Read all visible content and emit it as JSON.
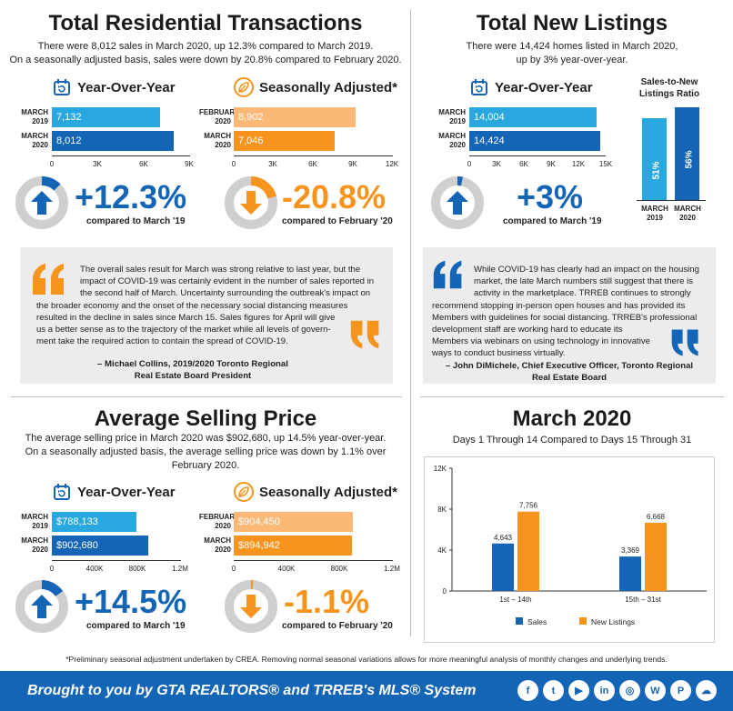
{
  "colors": {
    "light_blue": "#29a8e0",
    "dark_blue": "#1565b6",
    "light_orange": "#fbb877",
    "orange": "#f7941d",
    "grey": "#cfcfcf"
  },
  "trans": {
    "title": "Total Residential Transactions",
    "sub1": "There were 8,012 sales in March 2020, up 12.3% compared to March 2019.",
    "sub2": "On a seasonally adjusted basis, sales were down by 20.8% compared to February 2020.",
    "yoy": {
      "label": "Year-Over-Year",
      "r1l1": "MARCH",
      "r1l2": "2019",
      "r1v": "7,132",
      "r2l1": "MARCH",
      "r2l2": "2020",
      "r2v": "8,012",
      "ticks": [
        "0",
        "3K",
        "6K",
        "9K"
      ]
    },
    "sa": {
      "label": "Seasonally Adjusted*",
      "r1l1": "FEBRUARY",
      "r1l2": "2020",
      "r1v": "8,902",
      "r2l1": "MARCH",
      "r2l2": "2020",
      "r2v": "7,046",
      "ticks": [
        "0",
        "3K",
        "6K",
        "9K",
        "12K"
      ]
    },
    "pct1": "+12.3%",
    "cmp1": "compared to March '19",
    "pct2": "-20.8%",
    "cmp2": "compared to February '20"
  },
  "listings": {
    "title": "Total New Listings",
    "sub1": "There were 14,424 homes listed in March 2020,",
    "sub2": "up by 3% year-over-year.",
    "yoy": {
      "label": "Year-Over-Year",
      "r1l1": "MARCH",
      "r1l2": "2019",
      "r1v": "14,004",
      "r2l1": "MARCH",
      "r2l2": "2020",
      "r2v": "14,424",
      "ticks": [
        "0",
        "3K",
        "6K",
        "9K",
        "12K",
        "15K"
      ]
    },
    "pct": "+3%",
    "cmp": "compared to March '19",
    "ratio_title1": "Sales-to-New",
    "ratio_title2": "Listings Ratio",
    "ratio": [
      {
        "v": "51%",
        "l1": "MARCH",
        "l2": "2019"
      },
      {
        "v": "56%",
        "l1": "MARCH",
        "l2": "2020"
      }
    ]
  },
  "quote1": {
    "lines": [
      "The overall sales result for March was strong relative to last year, but the",
      "impact of COVID-19 was certainly evident in the number of sales reported in",
      "the second half of March. Uncertainty surrounding the outbreak's impact on",
      "the broader economy and the onset of the necessary social distancing measures",
      "resulted in the decline in sales since March 15. Sales figures for April will give",
      "us a better sense as to the trajectory of the market while all levels of govern-",
      "ment take the required action to contain the spread of COVID-19."
    ],
    "auth1": "– Michael Collins, 2019/2020 Toronto Regional",
    "auth2": "Real Estate Board President"
  },
  "quote2": {
    "lines": [
      "While COVID-19 has clearly had an impact on the housing",
      "market, the late March numbers still suggest that there is",
      "activity in the marketplace. TRREB continues to strongly",
      "recommend stopping in-person open houses and has provided its",
      "Members with guidelines for social distancing. TRREB's professional",
      "development staff are working hard to educate its",
      "Members via webinars on using technology in innovative",
      "ways to conduct business virtually."
    ],
    "auth1": "– John DiMichele, Chief Executive Officer, Toronto Regional",
    "auth2": "Real Estate Board"
  },
  "price": {
    "title": "Average Selling Price",
    "sub1": "The average selling price in March 2020 was $902,680, up 14.5% year-over-year.",
    "sub2": "On a seasonally adjusted basis, the average selling price was down by 1.1% over",
    "sub3": "February 2020.",
    "yoy": {
      "label": "Year-Over-Year",
      "r1l1": "MARCH",
      "r1l2": "2019",
      "r1v": "$788,133",
      "r2l1": "MARCH",
      "r2l2": "2020",
      "r2v": "$902,680",
      "ticks": [
        "0",
        "400K",
        "800K",
        "1.2M"
      ]
    },
    "sa": {
      "label": "Seasonally Adjusted*",
      "r1l1": "FEBRUARY",
      "r1l2": "2020",
      "r1v": "$904,450",
      "r2l1": "MARCH",
      "r2l2": "2020",
      "r2v": "$894,942",
      "ticks": [
        "0",
        "400K",
        "800K",
        "1.2M"
      ]
    },
    "pct1": "+14.5%",
    "cmp1": "compared to March '19",
    "pct2": "-1.1%",
    "cmp2": "compared to February '20"
  },
  "march": {
    "title": "March 2020",
    "sub": "Days 1 Through 14 Compared to Days 15 Through 31"
  },
  "chart_data": {
    "type": "bar",
    "categories": [
      "1st – 14th",
      "15th – 31st"
    ],
    "series": [
      {
        "name": "Sales",
        "values": [
          4643,
          3369
        ],
        "labels": [
          "4,643",
          "3,369"
        ]
      },
      {
        "name": "New Listings",
        "values": [
          7756,
          6668
        ],
        "labels": [
          "7,756",
          "6,668"
        ]
      }
    ],
    "ylim": [
      0,
      12000
    ],
    "yticks": [
      "0",
      "4K",
      "8K",
      "12K"
    ],
    "legend": "bottom"
  },
  "footnote": "*Preliminary seasonal adjustment undertaken by CREA. Removing normal seasonal variations allows for more meaningful analysis of monthly changes and underlying trends.",
  "footer": {
    "text": "Brought to you by GTA REALTORS® and TRREB's MLS® System",
    "social": [
      "f",
      "t",
      "▶",
      "in",
      "◎",
      "W",
      "P",
      "☁"
    ]
  }
}
